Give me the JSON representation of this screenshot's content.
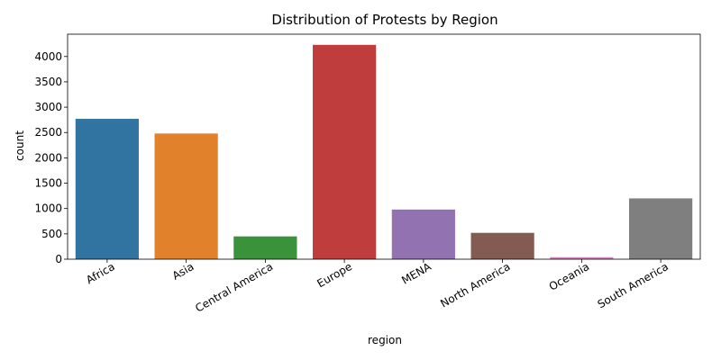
{
  "chart_data": {
    "type": "bar",
    "title": "Distribution of Protests by Region",
    "xlabel": "region",
    "ylabel": "count",
    "categories": [
      "Africa",
      "Asia",
      "Central America",
      "Europe",
      "MENA",
      "North America",
      "Oceania",
      "South America"
    ],
    "values": [
      2770,
      2480,
      450,
      4230,
      980,
      520,
      40,
      1200
    ],
    "colors": [
      "#3274a1",
      "#e1812c",
      "#3a923a",
      "#c03d3e",
      "#9372b2",
      "#845b53",
      "#d684bd",
      "#7f7f7f"
    ],
    "yticks": [
      0,
      500,
      1000,
      1500,
      2000,
      2500,
      3000,
      3500,
      4000
    ],
    "ylim": [
      0,
      4440
    ],
    "grid": false,
    "legend": "none"
  }
}
